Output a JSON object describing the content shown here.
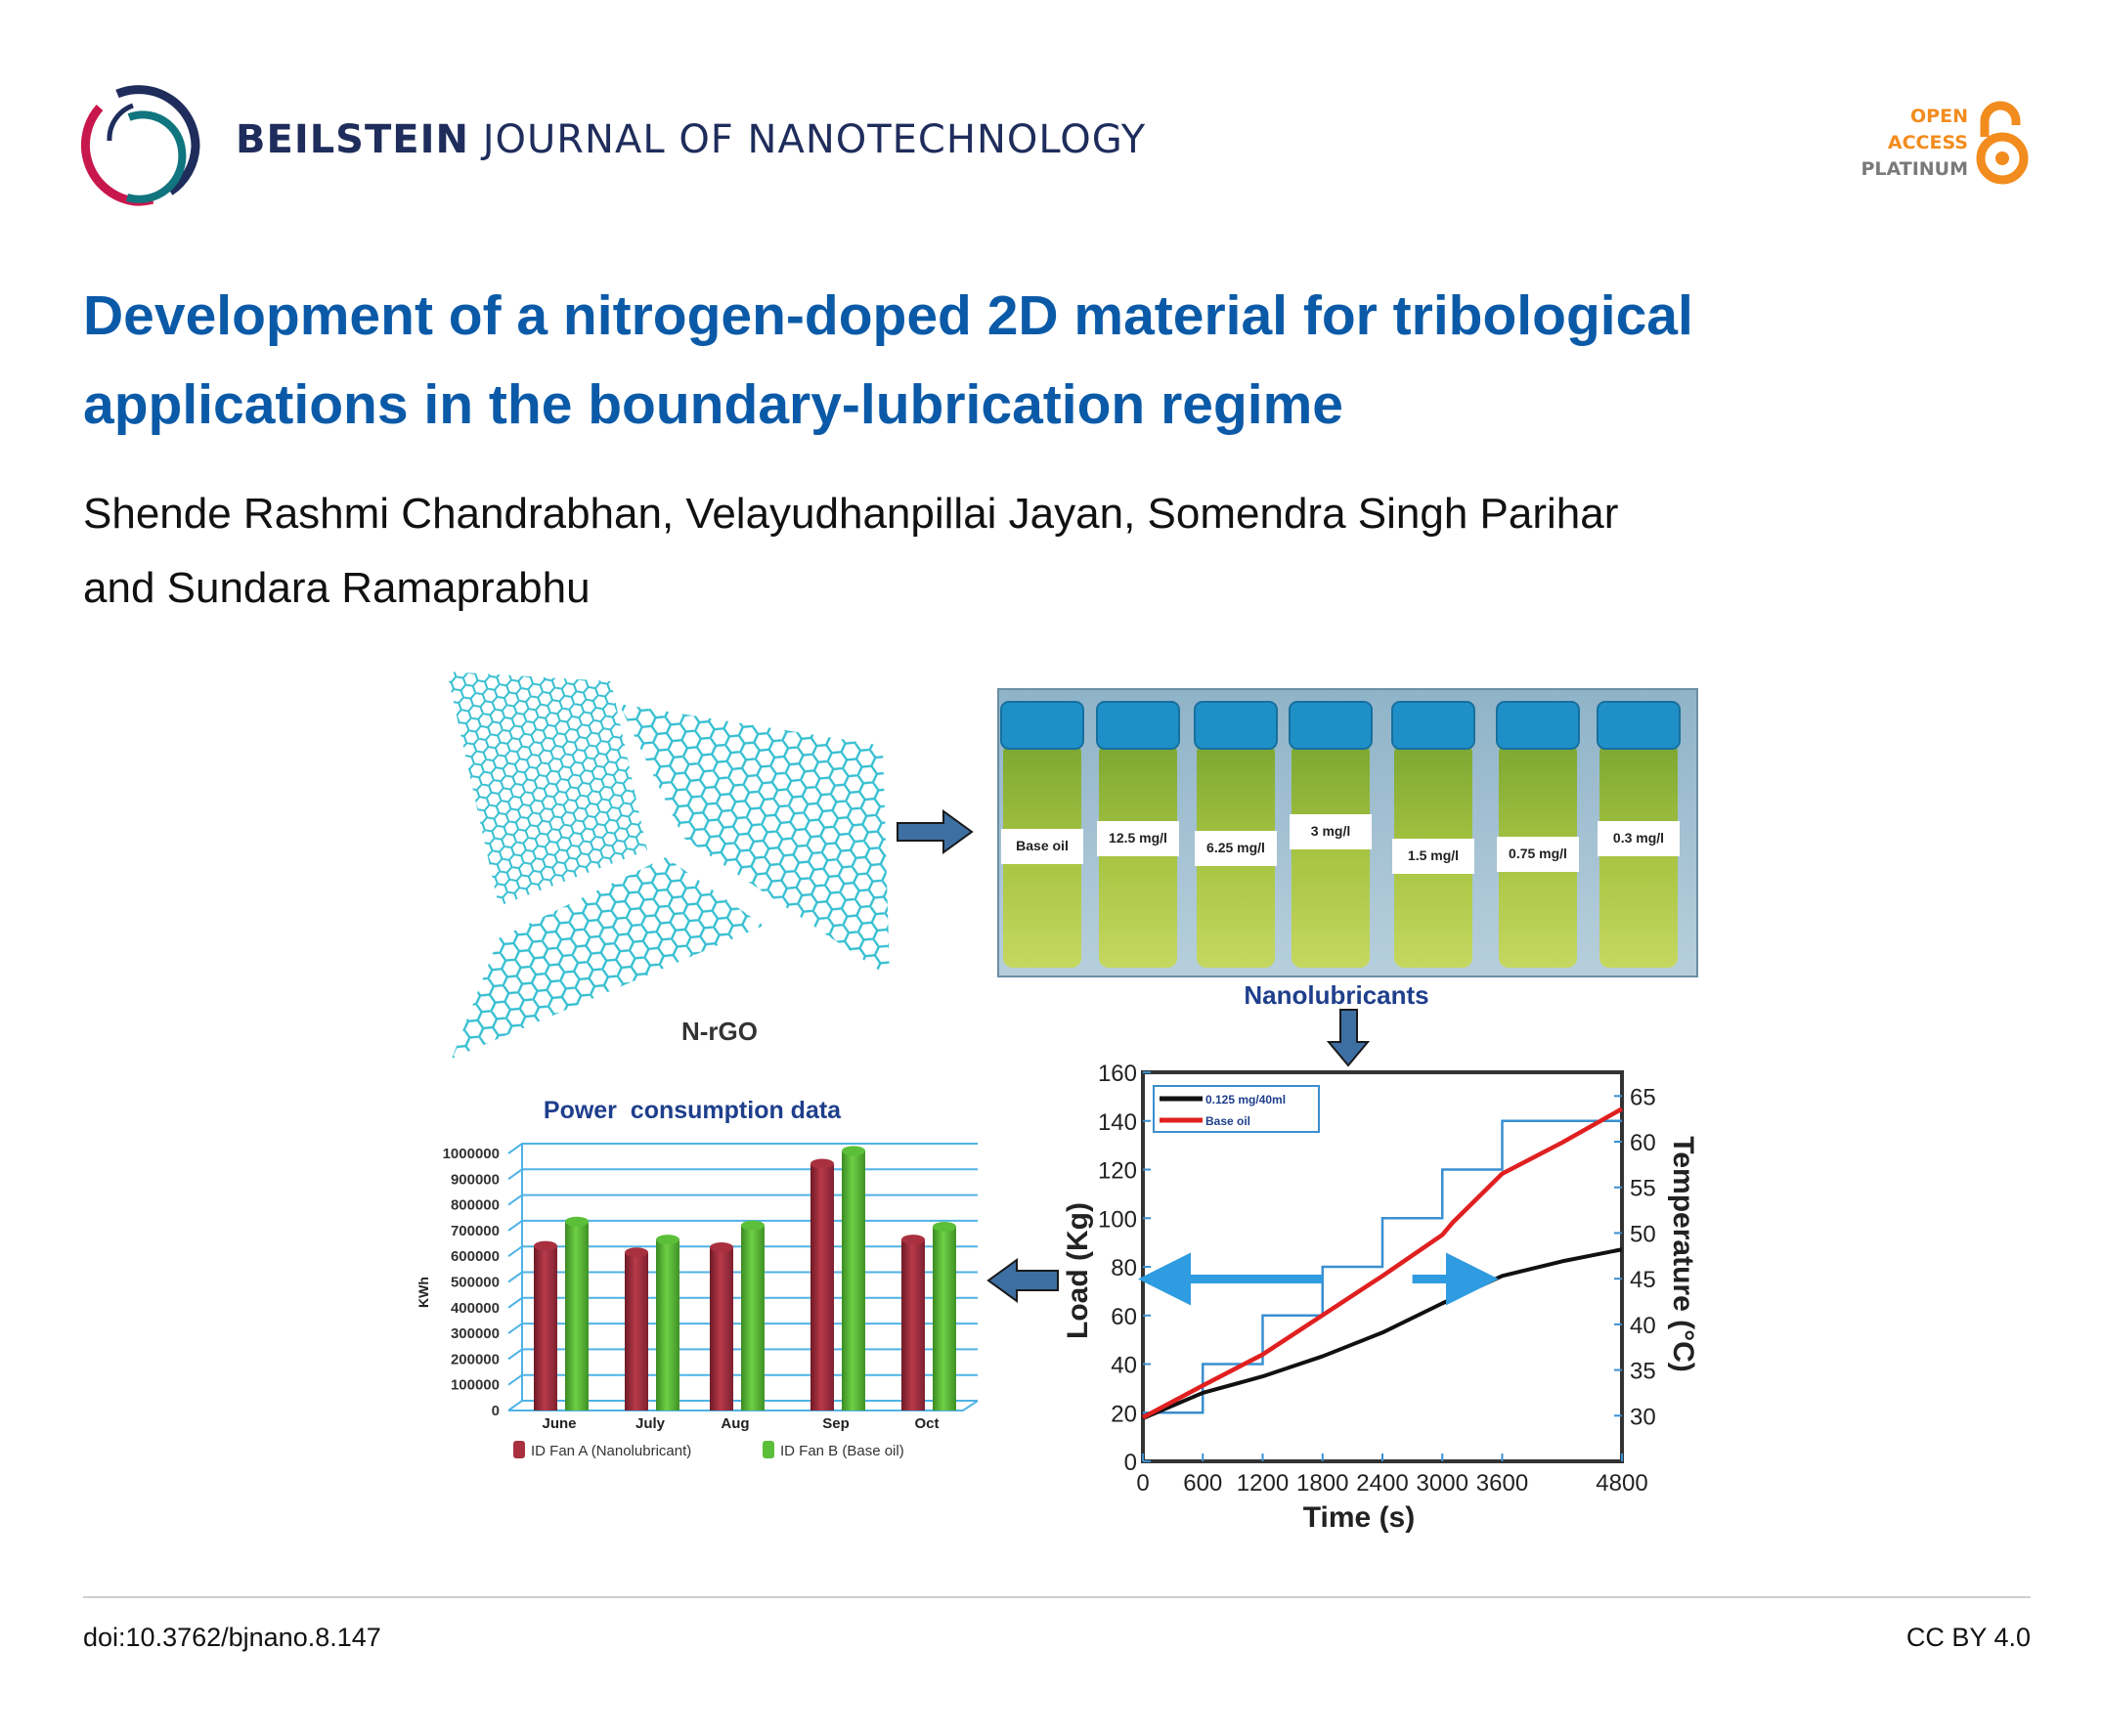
{
  "header": {
    "journal_bold": "BEILSTEIN",
    "journal_rest": "JOURNAL OF NANOTECHNOLOGY",
    "logo_icon": "beilstein-swirl-logo",
    "open_access": {
      "line1": "OPEN",
      "line2": "ACCESS",
      "line3": "PLATINUM",
      "icon": "open-lock-icon",
      "color": "#f28c1e",
      "grey": "#7a7a7a"
    }
  },
  "article": {
    "title_line1": "Development of a nitrogen-doped 2D material for tribological",
    "title_line2": "applications in the boundary-lubrication regime",
    "authors_line1": "Shende Rashmi Chandrabhan, Velayudhanpillai Jayan, Somendra Singh Parihar",
    "authors_line2": "and Sundara Ramaprabhu",
    "title_color": "#0b5aa8"
  },
  "figure": {
    "graphene_label": "N-rGO",
    "vials_label": "Nanolubricants",
    "vials": [
      "Base oil",
      "12.5 mg/l",
      "6.25 mg/l",
      "3 mg/l",
      "1.5 mg/l",
      "0.75 mg/l",
      "0.3 mg/l"
    ]
  },
  "chart_data": [
    {
      "type": "bar",
      "title": "Power  consumption data",
      "ylabel": "KWh",
      "categories": [
        "June",
        "July",
        "Aug",
        "Sep",
        "Oct"
      ],
      "ylim": [
        0,
        1000000
      ],
      "yticks": [
        "0",
        "100000",
        "200000",
        "300000",
        "400000",
        "500000",
        "600000",
        "700000",
        "800000",
        "900000",
        "1000000"
      ],
      "series": [
        {
          "name": "ID Fan A (Nanolubricant)",
          "color": "#a8303f",
          "values": [
            640000,
            615000,
            635000,
            960000,
            665000
          ]
        },
        {
          "name": "ID Fan B (Base oil)",
          "color": "#5cbf3a",
          "values": [
            735000,
            665000,
            720000,
            1010000,
            715000
          ]
        }
      ],
      "grid": true,
      "legend": "bottom"
    },
    {
      "type": "line",
      "xlabel": "Time (s)",
      "ylabel": "Load (Kg)",
      "y2label": "Temperature (°C)",
      "xlim": [
        0,
        4800
      ],
      "xticks": [
        "0",
        "600",
        "1200",
        "1800",
        "2400",
        "3000",
        "3600",
        "4800"
      ],
      "xtick_values": [
        0,
        600,
        1200,
        1800,
        2400,
        3000,
        3600,
        4800
      ],
      "ylim": [
        0,
        160
      ],
      "yticks": [
        "0",
        "20",
        "40",
        "60",
        "80",
        "100",
        "120",
        "140",
        "160"
      ],
      "y2lim": [
        25,
        67.6
      ],
      "y2ticks": [
        "30",
        "35",
        "40",
        "45",
        "50",
        "55",
        "60",
        "65"
      ],
      "load_steps": {
        "x": [
          0,
          600,
          600,
          1200,
          1200,
          1800,
          1800,
          2400,
          2400,
          3000,
          3000,
          3600,
          3600,
          4800
        ],
        "y": [
          20,
          20,
          40,
          40,
          60,
          60,
          80,
          80,
          100,
          100,
          120,
          120,
          140,
          140
        ],
        "color": "#3a8fd0"
      },
      "series": [
        {
          "name": "0.125 mg/40ml",
          "color": "#111111",
          "x": [
            0,
            600,
            1200,
            1800,
            2400,
            3000,
            3600,
            4200,
            4800
          ],
          "y": [
            29.7,
            32.5,
            34.3,
            36.5,
            39.1,
            42.3,
            45.3,
            46.9,
            48.2
          ]
        },
        {
          "name": "Base oil",
          "color": "#e02020",
          "x": [
            0,
            600,
            1200,
            1800,
            2400,
            3000,
            3100,
            3600,
            4200,
            4800
          ],
          "y": [
            29.8,
            33.3,
            36.7,
            41.0,
            45.3,
            49.8,
            51.1,
            56.5,
            59.9,
            63.6
          ]
        }
      ],
      "legend": "top-left"
    }
  ],
  "footer": {
    "doi": "doi:10.3762/bjnano.8.147",
    "license": "CC BY 4.0"
  }
}
